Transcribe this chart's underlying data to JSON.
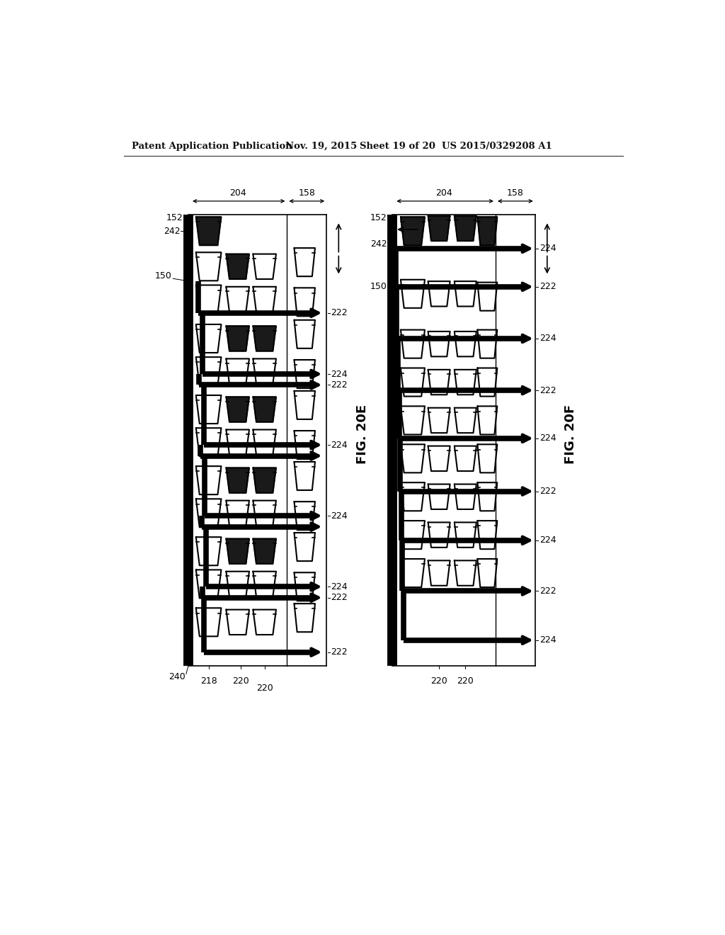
{
  "bg_color": "#ffffff",
  "header_text": "Patent Application Publication",
  "header_date": "Nov. 19, 2015",
  "header_sheet": "Sheet 19 of 20",
  "header_patent": "US 2015/0329208 A1",
  "fig_e_label": "FIG. 20E",
  "fig_f_label": "FIG. 20F"
}
